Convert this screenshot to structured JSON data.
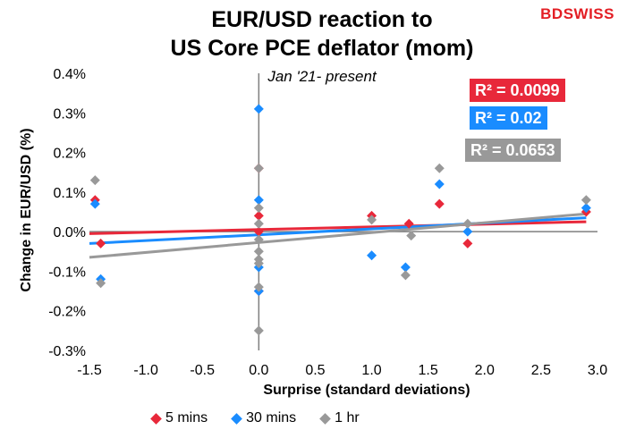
{
  "header": {
    "title_line1": "EUR/USD reaction to",
    "title_line2": "US Core PCE deflator (mom)",
    "subtitle": "Jan '21- present",
    "logo_bd": "BD",
    "logo_swiss": "SWISS"
  },
  "r2_labels": {
    "red": "R² = 0.0099",
    "blue": "R² = 0.02",
    "gray": "R² = 0.0653"
  },
  "colors": {
    "red": "#e8283a",
    "blue": "#1a8cff",
    "gray": "#999999",
    "axis": "#7f7f7f"
  },
  "chart_data": {
    "type": "scatter",
    "title": "EUR/USD reaction to US Core PCE deflator (mom)",
    "subtitle": "Jan '21- present",
    "xlabel": "Surprise (standard deviations)",
    "ylabel": "Change in EUR/USD  (%)",
    "xlim": [
      -1.5,
      3.0
    ],
    "ylim": [
      -0.3,
      0.4
    ],
    "x_ticks": [
      "-1.5",
      "-1.0",
      "-0.5",
      "0.0",
      "0.5",
      "1.0",
      "1.5",
      "2.0",
      "2.5",
      "3.0"
    ],
    "y_ticks": [
      "0.4%",
      "0.3%",
      "0.2%",
      "0.1%",
      "0.0%",
      "-0.1%",
      "-0.2%",
      "-0.3%"
    ],
    "grid": false,
    "legend_position": "bottom",
    "series": [
      {
        "name": "5 mins",
        "color": "#e8283a",
        "points": [
          [
            -1.45,
            0.08
          ],
          [
            -1.4,
            -0.03
          ],
          [
            0.0,
            0.16
          ],
          [
            0.0,
            0.04
          ],
          [
            0.0,
            0.0
          ],
          [
            0.0,
            -0.15
          ],
          [
            1.0,
            0.04
          ],
          [
            1.33,
            0.02
          ],
          [
            1.6,
            0.07
          ],
          [
            1.85,
            -0.03
          ],
          [
            2.9,
            0.05
          ]
        ],
        "trendline": [
          [
            -1.5,
            -0.005
          ],
          [
            2.9,
            0.025
          ]
        ],
        "r2": "R² = 0.0099"
      },
      {
        "name": "30 mins",
        "color": "#1a8cff",
        "points": [
          [
            -1.45,
            0.07
          ],
          [
            -1.4,
            -0.12
          ],
          [
            0.0,
            0.31
          ],
          [
            0.0,
            0.08
          ],
          [
            0.0,
            -0.09
          ],
          [
            0.0,
            -0.15
          ],
          [
            1.0,
            -0.06
          ],
          [
            1.3,
            -0.09
          ],
          [
            1.6,
            0.12
          ],
          [
            1.85,
            0.0
          ],
          [
            2.9,
            0.06
          ]
        ],
        "trendline": [
          [
            -1.5,
            -0.03
          ],
          [
            2.9,
            0.035
          ]
        ],
        "r2": "R² = 0.02"
      },
      {
        "name": "1 hr",
        "color": "#999999",
        "points": [
          [
            -1.45,
            0.13
          ],
          [
            -1.4,
            -0.13
          ],
          [
            0.0,
            0.16
          ],
          [
            0.0,
            0.06
          ],
          [
            0.0,
            0.02
          ],
          [
            0.0,
            -0.02
          ],
          [
            0.0,
            -0.05
          ],
          [
            0.0,
            -0.07
          ],
          [
            0.0,
            -0.08
          ],
          [
            0.0,
            -0.14
          ],
          [
            0.0,
            -0.25
          ],
          [
            1.0,
            0.03
          ],
          [
            1.3,
            -0.11
          ],
          [
            1.35,
            -0.01
          ],
          [
            1.6,
            0.16
          ],
          [
            1.85,
            0.02
          ],
          [
            2.9,
            0.08
          ]
        ],
        "trendline": [
          [
            -1.5,
            -0.065
          ],
          [
            2.9,
            0.045
          ]
        ],
        "r2": "R² = 0.0653"
      }
    ]
  }
}
